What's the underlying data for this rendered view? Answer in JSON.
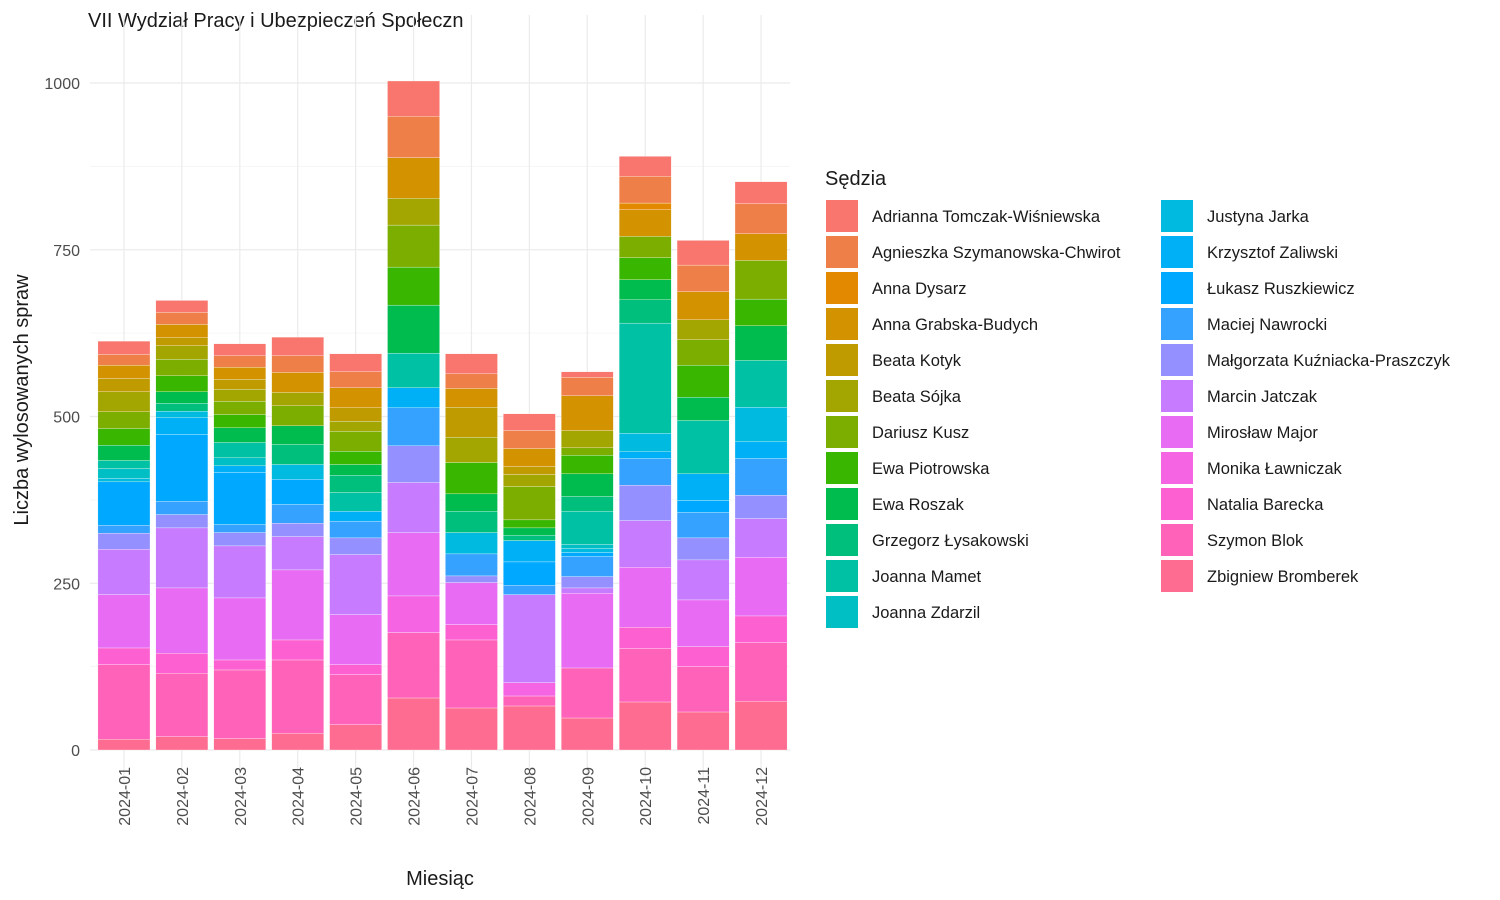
{
  "chart_data": {
    "type": "bar",
    "stacked": true,
    "title": "VII Wydział Pracy i Ubezpieczeń Społeczn",
    "xlabel": "Miesiąc",
    "ylabel": "Liczba wylosowanych spraw",
    "ylim": [
      0,
      1100
    ],
    "yticks": [
      0,
      250,
      500,
      750,
      1000
    ],
    "grid": true,
    "legend_title": "Sędzia",
    "legend_position": "right",
    "categories": [
      "2024-01",
      "2024-02",
      "2024-03",
      "2024-04",
      "2024-05",
      "2024-06",
      "2024-07",
      "2024-08",
      "2024-09",
      "2024-10",
      "2024-11",
      "2024-12"
    ],
    "series": [
      {
        "name": "Adrianna Tomczak-Wiśniewska",
        "color": "#F8766D",
        "values": [
          20,
          18,
          18,
          28,
          27,
          53,
          30,
          25,
          8,
          30,
          37,
          33
        ]
      },
      {
        "name": "Agnieszka Szymanowska-Chwirot",
        "color": "#EF7F49",
        "values": [
          16,
          18,
          17,
          25,
          24,
          62,
          22,
          27,
          28,
          40,
          40,
          45
        ]
      },
      {
        "name": "Anna Dysarz",
        "color": "#E38900",
        "values": [
          0,
          0,
          0,
          0,
          0,
          0,
          0,
          0,
          0,
          10,
          0,
          0
        ]
      },
      {
        "name": "Anna Grabska-Budych",
        "color": "#D39200",
        "values": [
          20,
          20,
          18,
          30,
          30,
          61,
          28,
          27,
          52,
          40,
          42,
          40
        ]
      },
      {
        "name": "Beata Kotyk",
        "color": "#C09B00",
        "values": [
          20,
          12,
          15,
          0,
          20,
          0,
          45,
          12,
          0,
          0,
          0,
          0
        ]
      },
      {
        "name": "Beata Sójka",
        "color": "#A3A500",
        "values": [
          30,
          20,
          18,
          20,
          15,
          40,
          38,
          18,
          26,
          0,
          30,
          0
        ]
      },
      {
        "name": "Dariusz Kusz",
        "color": "#7CAE00",
        "values": [
          25,
          25,
          20,
          30,
          30,
          63,
          0,
          50,
          11,
          32,
          38,
          58
        ]
      },
      {
        "name": "Ewa Piotrowska",
        "color": "#39B600",
        "values": [
          25,
          24,
          20,
          0,
          20,
          57,
          47,
          12,
          28,
          33,
          48,
          40
        ]
      },
      {
        "name": "Ewa Roszak",
        "color": "#00BB4E",
        "values": [
          23,
          17,
          22,
          28,
          16,
          72,
          26,
          11,
          34,
          30,
          35,
          52
        ]
      },
      {
        "name": "Grzegorz Łysakowski",
        "color": "#00BF7D",
        "values": [
          0,
          12,
          0,
          30,
          26,
          0,
          32,
          8,
          22,
          35,
          0,
          0
        ]
      },
      {
        "name": "Joanna Mamet",
        "color": "#00C1A3",
        "values": [
          12,
          0,
          23,
          0,
          28,
          52,
          0,
          0,
          50,
          165,
          80,
          70
        ]
      },
      {
        "name": "Joanna Zdarzil",
        "color": "#00BFC4",
        "values": [
          15,
          0,
          12,
          0,
          0,
          0,
          0,
          0,
          6,
          0,
          0,
          0
        ]
      },
      {
        "name": "Justyna Jarka",
        "color": "#00BAE0",
        "values": [
          5,
          10,
          0,
          22,
          0,
          0,
          32,
          0,
          6,
          28,
          0,
          52
        ]
      },
      {
        "name": "Krzysztof Zaliwski",
        "color": "#00B0F6",
        "values": [
          0,
          25,
          10,
          0,
          15,
          30,
          0,
          32,
          0,
          10,
          40,
          25
        ]
      },
      {
        "name": "Łukasz Ruszkiewicz",
        "color": "#00A9FF",
        "values": [
          65,
          100,
          78,
          38,
          0,
          0,
          0,
          35,
          6,
          0,
          18,
          0
        ]
      },
      {
        "name": "Maciej Nawrocki",
        "color": "#35A2FF",
        "values": [
          12,
          20,
          12,
          28,
          25,
          57,
          33,
          14,
          30,
          40,
          38,
          55
        ]
      },
      {
        "name": "Małgorzata Kuźniacka-Praszczyk",
        "color": "#9590FF",
        "values": [
          24,
          20,
          20,
          20,
          25,
          55,
          10,
          0,
          17,
          53,
          33,
          35
        ]
      },
      {
        "name": "Marcin Jatczak",
        "color": "#C77CFF",
        "values": [
          68,
          90,
          78,
          50,
          90,
          75,
          0,
          132,
          8,
          70,
          60,
          58
        ]
      },
      {
        "name": "Mirosław Major",
        "color": "#E76BF3",
        "values": [
          80,
          98,
          93,
          105,
          75,
          95,
          63,
          0,
          112,
          90,
          70,
          88
        ]
      },
      {
        "name": "Monika Ławniczak",
        "color": "#F564E3",
        "values": [
          0,
          0,
          0,
          0,
          0,
          55,
          0,
          20,
          0,
          0,
          0,
          0
        ]
      },
      {
        "name": "Natalia Barecka",
        "color": "#FD61D1",
        "values": [
          25,
          30,
          15,
          30,
          15,
          0,
          23,
          0,
          0,
          32,
          30,
          40
        ]
      },
      {
        "name": "Szymon Blok",
        "color": "#FF63B9",
        "values": [
          112,
          95,
          103,
          110,
          75,
          98,
          102,
          15,
          75,
          80,
          68,
          88
        ]
      },
      {
        "name": "Zbigniew Bromberek",
        "color": "#FF6C91",
        "values": [
          16,
          20,
          17,
          25,
          38,
          78,
          63,
          66,
          48,
          72,
          57,
          73
        ]
      }
    ]
  }
}
